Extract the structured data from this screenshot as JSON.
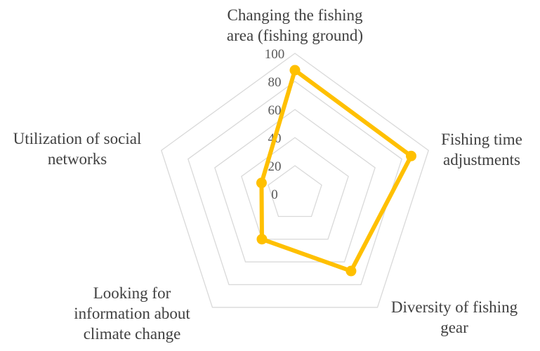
{
  "chart_data": {
    "type": "radar",
    "categories": [
      "Changing the fishing area (fishing ground)",
      "Fishing time adjustments",
      "Diversity of fishing gear",
      "Looking for information about climate change",
      "Utilization of social networks"
    ],
    "category_lines": [
      [
        "Changing the fishing",
        "area (fishing ground)"
      ],
      [
        "Fishing time",
        "adjustments"
      ],
      [
        "Diversity of fishing",
        "gear"
      ],
      [
        "Looking for",
        "information about",
        "climate change"
      ],
      [
        "Utilization of social",
        "networks"
      ]
    ],
    "series": [
      {
        "values": [
          88,
          87,
          68,
          40,
          25
        ],
        "color": "#FFC000"
      }
    ],
    "r_ticks": [
      "0",
      "20",
      "40",
      "60",
      "80",
      "100"
    ],
    "rlim": [
      0,
      100
    ],
    "grid": true,
    "legend": "none"
  }
}
